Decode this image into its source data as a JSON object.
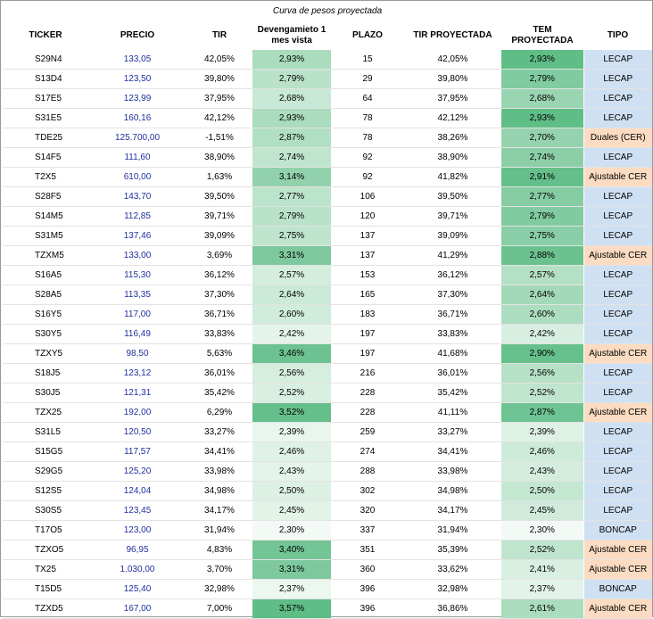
{
  "title": "Curva de pesos proyectada",
  "headers": {
    "ticker": "TICKER",
    "precio": "PRECIO",
    "tir": "TIR",
    "devengamiento": "Devengamieto 1 mes vista",
    "plazo": "PLAZO",
    "tir_proyectada": "TIR PROYECTADA",
    "tem_proyectada": "TEM PROYECTADA",
    "tipo": "TIPO"
  },
  "colors": {
    "lecap": "#cfe0f3",
    "cer": "#fbdcc2",
    "boncap": "#cfe0f3",
    "green_low": "#f3faf5",
    "green_high": "#5fbd86"
  },
  "rows": [
    {
      "ticker": "S29N4",
      "precio": "133,05",
      "tir": "42,05%",
      "dev": "2,93%",
      "plazo": "15",
      "tir_p": "42,05%",
      "tem_p": "2,93%",
      "tipo": "LECAP"
    },
    {
      "ticker": "S13D4",
      "precio": "123,50",
      "tir": "39,80%",
      "dev": "2,79%",
      "plazo": "29",
      "tir_p": "39,80%",
      "tem_p": "2,79%",
      "tipo": "LECAP"
    },
    {
      "ticker": "S17E5",
      "precio": "123,99",
      "tir": "37,95%",
      "dev": "2,68%",
      "plazo": "64",
      "tir_p": "37,95%",
      "tem_p": "2,68%",
      "tipo": "LECAP"
    },
    {
      "ticker": "S31E5",
      "precio": "160,16",
      "tir": "42,12%",
      "dev": "2,93%",
      "plazo": "78",
      "tir_p": "42,12%",
      "tem_p": "2,93%",
      "tipo": "LECAP"
    },
    {
      "ticker": "TDE25",
      "precio": "125.700,00",
      "tir": "-1,51%",
      "dev": "2,87%",
      "plazo": "78",
      "tir_p": "38,26%",
      "tem_p": "2,70%",
      "tipo": "Duales (CER)"
    },
    {
      "ticker": "S14F5",
      "precio": "111,60",
      "tir": "38,90%",
      "dev": "2,74%",
      "plazo": "92",
      "tir_p": "38,90%",
      "tem_p": "2,74%",
      "tipo": "LECAP"
    },
    {
      "ticker": "T2X5",
      "precio": "610,00",
      "tir": "1,63%",
      "dev": "3,14%",
      "plazo": "92",
      "tir_p": "41,82%",
      "tem_p": "2,91%",
      "tipo": "Ajustable CER"
    },
    {
      "ticker": "S28F5",
      "precio": "143,70",
      "tir": "39,50%",
      "dev": "2,77%",
      "plazo": "106",
      "tir_p": "39,50%",
      "tem_p": "2,77%",
      "tipo": "LECAP"
    },
    {
      "ticker": "S14M5",
      "precio": "112,85",
      "tir": "39,71%",
      "dev": "2,79%",
      "plazo": "120",
      "tir_p": "39,71%",
      "tem_p": "2,79%",
      "tipo": "LECAP"
    },
    {
      "ticker": "S31M5",
      "precio": "137,46",
      "tir": "39,09%",
      "dev": "2,75%",
      "plazo": "137",
      "tir_p": "39,09%",
      "tem_p": "2,75%",
      "tipo": "LECAP"
    },
    {
      "ticker": "TZXM5",
      "precio": "133,00",
      "tir": "3,69%",
      "dev": "3,31%",
      "plazo": "137",
      "tir_p": "41,29%",
      "tem_p": "2,88%",
      "tipo": "Ajustable CER"
    },
    {
      "ticker": "S16A5",
      "precio": "115,30",
      "tir": "36,12%",
      "dev": "2,57%",
      "plazo": "153",
      "tir_p": "36,12%",
      "tem_p": "2,57%",
      "tipo": "LECAP"
    },
    {
      "ticker": "S28A5",
      "precio": "113,35",
      "tir": "37,30%",
      "dev": "2,64%",
      "plazo": "165",
      "tir_p": "37,30%",
      "tem_p": "2,64%",
      "tipo": "LECAP"
    },
    {
      "ticker": "S16Y5",
      "precio": "117,00",
      "tir": "36,71%",
      "dev": "2,60%",
      "plazo": "183",
      "tir_p": "36,71%",
      "tem_p": "2,60%",
      "tipo": "LECAP"
    },
    {
      "ticker": "S30Y5",
      "precio": "116,49",
      "tir": "33,83%",
      "dev": "2,42%",
      "plazo": "197",
      "tir_p": "33,83%",
      "tem_p": "2,42%",
      "tipo": "LECAP"
    },
    {
      "ticker": "TZXY5",
      "precio": "98,50",
      "tir": "5,63%",
      "dev": "3,46%",
      "plazo": "197",
      "tir_p": "41,68%",
      "tem_p": "2,90%",
      "tipo": "Ajustable CER"
    },
    {
      "ticker": "S18J5",
      "precio": "123,12",
      "tir": "36,01%",
      "dev": "2,56%",
      "plazo": "216",
      "tir_p": "36,01%",
      "tem_p": "2,56%",
      "tipo": "LECAP"
    },
    {
      "ticker": "S30J5",
      "precio": "121,31",
      "tir": "35,42%",
      "dev": "2,52%",
      "plazo": "228",
      "tir_p": "35,42%",
      "tem_p": "2,52%",
      "tipo": "LECAP"
    },
    {
      "ticker": "TZX25",
      "precio": "192,00",
      "tir": "6,29%",
      "dev": "3,52%",
      "plazo": "228",
      "tir_p": "41,11%",
      "tem_p": "2,87%",
      "tipo": "Ajustable CER"
    },
    {
      "ticker": "S31L5",
      "precio": "120,50",
      "tir": "33,27%",
      "dev": "2,39%",
      "plazo": "259",
      "tir_p": "33,27%",
      "tem_p": "2,39%",
      "tipo": "LECAP"
    },
    {
      "ticker": "S15G5",
      "precio": "117,57",
      "tir": "34,41%",
      "dev": "2,46%",
      "plazo": "274",
      "tir_p": "34,41%",
      "tem_p": "2,46%",
      "tipo": "LECAP"
    },
    {
      "ticker": "S29G5",
      "precio": "125,20",
      "tir": "33,98%",
      "dev": "2,43%",
      "plazo": "288",
      "tir_p": "33,98%",
      "tem_p": "2,43%",
      "tipo": "LECAP"
    },
    {
      "ticker": "S12S5",
      "precio": "124,04",
      "tir": "34,98%",
      "dev": "2,50%",
      "plazo": "302",
      "tir_p": "34,98%",
      "tem_p": "2,50%",
      "tipo": "LECAP"
    },
    {
      "ticker": "S30S5",
      "precio": "123,45",
      "tir": "34,17%",
      "dev": "2,45%",
      "plazo": "320",
      "tir_p": "34,17%",
      "tem_p": "2,45%",
      "tipo": "LECAP"
    },
    {
      "ticker": "T17O5",
      "precio": "123,00",
      "tir": "31,94%",
      "dev": "2,30%",
      "plazo": "337",
      "tir_p": "31,94%",
      "tem_p": "2,30%",
      "tipo": "BONCAP"
    },
    {
      "ticker": "TZXO5",
      "precio": "96,95",
      "tir": "4,83%",
      "dev": "3,40%",
      "plazo": "351",
      "tir_p": "35,39%",
      "tem_p": "2,52%",
      "tipo": "Ajustable CER"
    },
    {
      "ticker": "TX25",
      "precio": "1.030,00",
      "tir": "3,70%",
      "dev": "3,31%",
      "plazo": "360",
      "tir_p": "33,62%",
      "tem_p": "2,41%",
      "tipo": "Ajustable CER"
    },
    {
      "ticker": "T15D5",
      "precio": "125,40",
      "tir": "32,98%",
      "dev": "2,37%",
      "plazo": "396",
      "tir_p": "32,98%",
      "tem_p": "2,37%",
      "tipo": "BONCAP"
    },
    {
      "ticker": "TZXD5",
      "precio": "167,00",
      "tir": "7,00%",
      "dev": "3,57%",
      "plazo": "396",
      "tir_p": "36,86%",
      "tem_p": "2,61%",
      "tipo": "Ajustable CER"
    }
  ]
}
